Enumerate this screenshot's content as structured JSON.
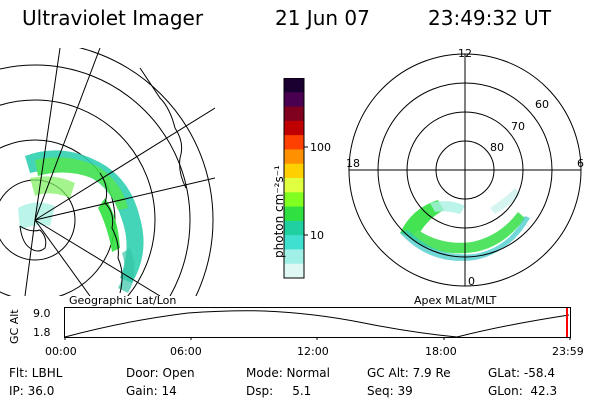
{
  "header": {
    "instrument": "Ultraviolet Imager",
    "date": "21 Jun 07",
    "time": "23:49:32 UT"
  },
  "left_plot": {
    "label": "Geographic Lat/Lon"
  },
  "right_plot": {
    "label": "Apex  MLat/MLT",
    "mlt_labels": {
      "top": "12",
      "left": "18",
      "right": "6",
      "bottom": "0"
    },
    "mlat_labels": [
      "60",
      "70",
      "80"
    ]
  },
  "colorbar": {
    "unit_label": "photon cm⁻²s⁻¹",
    "tick_labels": [
      "100",
      "10"
    ],
    "colors": [
      "#1a0030",
      "#4a0050",
      "#800020",
      "#c00000",
      "#ff4000",
      "#ff9000",
      "#ffd000",
      "#e0ff40",
      "#80ff20",
      "#30e040",
      "#20d0a0",
      "#40e0d0",
      "#a0f0e8",
      "#dff8f4"
    ]
  },
  "altitude_panel": {
    "y_label": "GC Alt",
    "y_ticks": [
      "9.0",
      "1.8"
    ],
    "x_ticks": [
      "00:00",
      "06:00",
      "12:00",
      "18:00",
      "23:59"
    ],
    "current_marker_color": "#ff0000"
  },
  "info": {
    "flt": "Flt: LBHL",
    "door": "Door: Open",
    "mode": "Mode: Normal",
    "gc_alt": "GC Alt: 7.9 Re",
    "glat": "GLat: -58.4",
    "ip": "IP: 36.0",
    "gain": "Gain: 14",
    "dsp": "Dsp:     5.1",
    "seq": "Seq: 39",
    "glon": "GLon:  42.3"
  }
}
